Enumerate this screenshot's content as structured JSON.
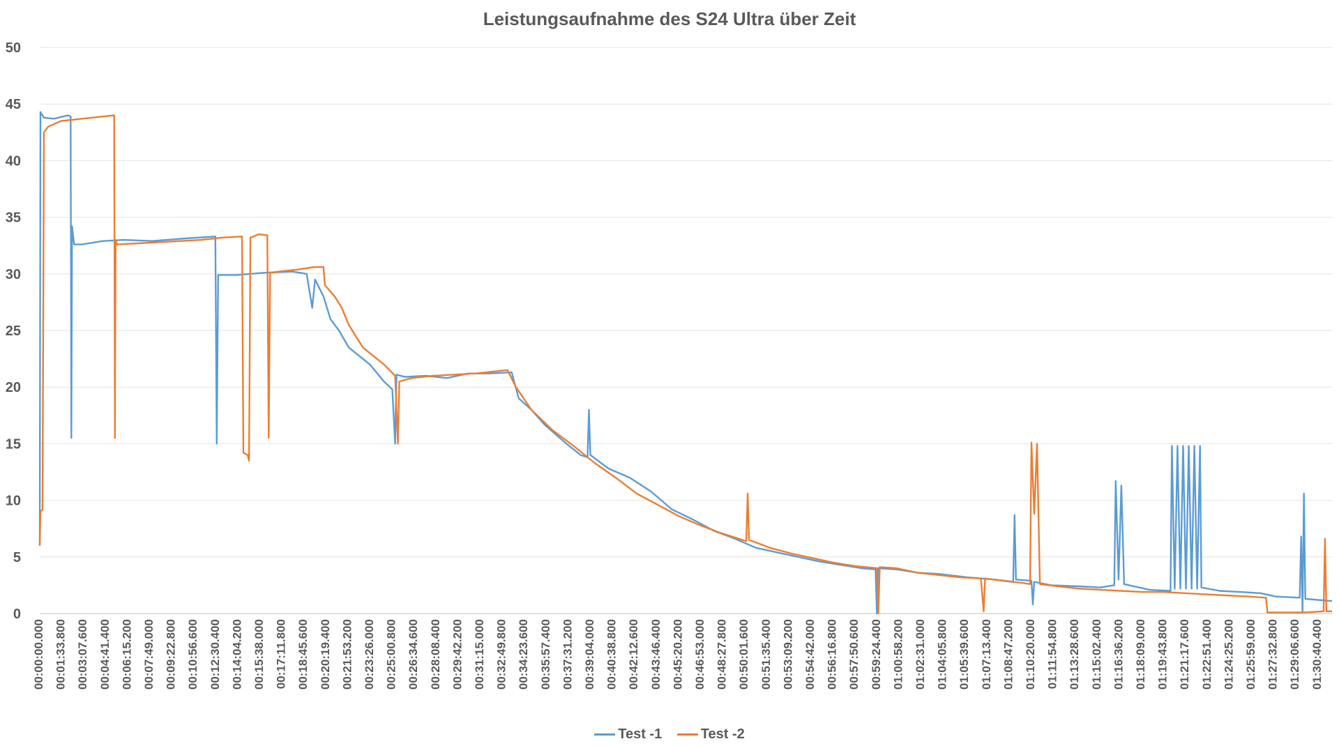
{
  "chart_data": {
    "type": "line",
    "title": "Leistungsaufnahme des S24 Ultra über Zeit",
    "xlabel": "",
    "ylabel": "",
    "ylim": [
      0,
      50
    ],
    "yticks": [
      0,
      5,
      10,
      15,
      20,
      25,
      30,
      35,
      40,
      45,
      50
    ],
    "grid": true,
    "legend_position": "bottom",
    "x_tick_labels": [
      "00:00:00.000",
      "00:01:33.800",
      "00:03:07.600",
      "00:04:41.400",
      "00:06:15.200",
      "00:07:49.000",
      "00:09:22.800",
      "00:10:56.600",
      "00:12:30.400",
      "00:14:04.200",
      "00:15:38.000",
      "00:17:11.800",
      "00:18:45.600",
      "00:20:19.400",
      "00:21:53.200",
      "00:23:26.000",
      "00:25:00.800",
      "00:26:34.600",
      "00:28:08.400",
      "00:29:42.200",
      "00:31:15.000",
      "00:32:49.800",
      "00:34:23.600",
      "00:35:57.400",
      "00:37:31.200",
      "00:39:04.000",
      "00:40:38.800",
      "00:42:12.600",
      "00:43:46.400",
      "00:45:20.200",
      "00:46:53.000",
      "00:48:27.800",
      "00:50:01.600",
      "00:51:35.400",
      "00:53:09.200",
      "00:54:42.000",
      "00:56:16.800",
      "00:57:50.600",
      "00:59:24.400",
      "01:00:58.200",
      "01:02:31.000",
      "01:04:05.800",
      "01:05:39.600",
      "01:07:13.400",
      "01:08:47.200",
      "01:10:20.000",
      "01:11:54.800",
      "01:13:28.600",
      "01:15:02.400",
      "01:16:36.200",
      "01:18:09.000",
      "01:19:43.800",
      "01:21:17.600",
      "01:22:51.400",
      "01:24:25.200",
      "01:25:59.000",
      "01:27:32.800",
      "01:29:06.600",
      "01:30:40.400"
    ],
    "x_minutes_max": 92,
    "series": [
      {
        "name": "Test -1",
        "color": "#5b9bd5",
        "points": [
          [
            0,
            6
          ],
          [
            0.05,
            44.3
          ],
          [
            0.3,
            43.8
          ],
          [
            1,
            43.7
          ],
          [
            2,
            44
          ],
          [
            2.2,
            43.9
          ],
          [
            2.25,
            15.5
          ],
          [
            2.3,
            34.2
          ],
          [
            2.45,
            32.6
          ],
          [
            3,
            32.6
          ],
          [
            4.5,
            32.9
          ],
          [
            6,
            33.0
          ],
          [
            8,
            32.9
          ],
          [
            10,
            33.1
          ],
          [
            12.5,
            33.3
          ],
          [
            12.6,
            15
          ],
          [
            12.7,
            29.9
          ],
          [
            14,
            29.9
          ],
          [
            15,
            30.0
          ],
          [
            16,
            30.1
          ],
          [
            18,
            30.2
          ],
          [
            19,
            30.0
          ],
          [
            19.4,
            27
          ],
          [
            19.6,
            29.5
          ],
          [
            20.2,
            28
          ],
          [
            20.7,
            26
          ],
          [
            21.3,
            25
          ],
          [
            22,
            23.5
          ],
          [
            23.5,
            22
          ],
          [
            24.5,
            20.5
          ],
          [
            25.1,
            19.8
          ],
          [
            25.3,
            15
          ],
          [
            25.4,
            21.1
          ],
          [
            26,
            20.9
          ],
          [
            27.5,
            21
          ],
          [
            29,
            20.8
          ],
          [
            30.5,
            21.2
          ],
          [
            32,
            21.2
          ],
          [
            33.6,
            21.3
          ],
          [
            34.1,
            19
          ],
          [
            35,
            18
          ],
          [
            36,
            16.6
          ],
          [
            37.5,
            15
          ],
          [
            38.5,
            14
          ],
          [
            39,
            13.8
          ],
          [
            39.1,
            18
          ],
          [
            39.2,
            14
          ],
          [
            40.5,
            12.8
          ],
          [
            42,
            12
          ],
          [
            43.5,
            10.8
          ],
          [
            45,
            9.2
          ],
          [
            46.5,
            8.3
          ],
          [
            48,
            7.3
          ],
          [
            49.5,
            6.6
          ],
          [
            51,
            5.8
          ],
          [
            52.5,
            5.4
          ],
          [
            54,
            5.0
          ],
          [
            55.5,
            4.6
          ],
          [
            57,
            4.3
          ],
          [
            58.5,
            4.0
          ],
          [
            59.5,
            3.9
          ],
          [
            59.6,
            0
          ],
          [
            59.7,
            4.0
          ],
          [
            61,
            3.9
          ],
          [
            62.5,
            3.6
          ],
          [
            64,
            3.5
          ],
          [
            66,
            3.2
          ],
          [
            68,
            3.0
          ],
          [
            69.3,
            2.8
          ],
          [
            69.4,
            8.7
          ],
          [
            69.5,
            3.0
          ],
          [
            70.6,
            2.9
          ],
          [
            70.7,
            0.8
          ],
          [
            70.8,
            2.8
          ],
          [
            72,
            2.5
          ],
          [
            74,
            2.4
          ],
          [
            75.5,
            2.3
          ],
          [
            76.5,
            2.5
          ],
          [
            76.6,
            11.7
          ],
          [
            76.8,
            3
          ],
          [
            77,
            11.3
          ],
          [
            77.2,
            2.6
          ],
          [
            79,
            2.1
          ],
          [
            80.5,
            2.0
          ],
          [
            80.6,
            14.8
          ],
          [
            80.8,
            2.2
          ],
          [
            81,
            14.8
          ],
          [
            81.2,
            2.2
          ],
          [
            81.4,
            14.8
          ],
          [
            81.6,
            2.2
          ],
          [
            81.8,
            14.8
          ],
          [
            82,
            2.2
          ],
          [
            82.2,
            14.8
          ],
          [
            82.4,
            2.2
          ],
          [
            82.6,
            14.8
          ],
          [
            82.7,
            2.3
          ],
          [
            84,
            2.0
          ],
          [
            85.5,
            1.9
          ],
          [
            86.9,
            1.8
          ],
          [
            88,
            1.5
          ],
          [
            89.7,
            1.4
          ],
          [
            89.8,
            6.8
          ],
          [
            89.9,
            0.1
          ],
          [
            90,
            10.6
          ],
          [
            90.1,
            1.3
          ],
          [
            91,
            1.2
          ],
          [
            92,
            1.1
          ]
        ]
      },
      {
        "name": "Test -2",
        "color": "#ed7d31",
        "points": [
          [
            0,
            6
          ],
          [
            0.05,
            9
          ],
          [
            0.2,
            9.2
          ],
          [
            0.3,
            42.5
          ],
          [
            0.6,
            43
          ],
          [
            1.5,
            43.5
          ],
          [
            3,
            43.7
          ],
          [
            4.5,
            43.9
          ],
          [
            5.3,
            44.0
          ],
          [
            5.35,
            15.5
          ],
          [
            5.4,
            33
          ],
          [
            5.5,
            32.6
          ],
          [
            7,
            32.7
          ],
          [
            8.5,
            32.8
          ],
          [
            10,
            32.9
          ],
          [
            11.5,
            33.0
          ],
          [
            13,
            33.2
          ],
          [
            14.4,
            33.3
          ],
          [
            14.5,
            14.2
          ],
          [
            14.8,
            14
          ],
          [
            14.9,
            13.5
          ],
          [
            15,
            33.2
          ],
          [
            15.6,
            33.5
          ],
          [
            16.2,
            33.4
          ],
          [
            16.3,
            15.5
          ],
          [
            16.4,
            30.1
          ],
          [
            17,
            30.2
          ],
          [
            18.5,
            30.4
          ],
          [
            19.5,
            30.6
          ],
          [
            20.2,
            30.6
          ],
          [
            20.3,
            29
          ],
          [
            21,
            28
          ],
          [
            21.5,
            27
          ],
          [
            22,
            25.5
          ],
          [
            23,
            23.5
          ],
          [
            24.5,
            22
          ],
          [
            25.3,
            21
          ],
          [
            25.5,
            15
          ],
          [
            25.6,
            20.5
          ],
          [
            26.5,
            20.8
          ],
          [
            28,
            21.0
          ],
          [
            29.5,
            21.1
          ],
          [
            31,
            21.2
          ],
          [
            33.3,
            21.5
          ],
          [
            33.9,
            20
          ],
          [
            35,
            18
          ],
          [
            36.5,
            16.2
          ],
          [
            38,
            14.8
          ],
          [
            39.5,
            13.3
          ],
          [
            41,
            12
          ],
          [
            42.5,
            10.6
          ],
          [
            44,
            9.6
          ],
          [
            45.5,
            8.6
          ],
          [
            47,
            7.8
          ],
          [
            48.5,
            7.1
          ],
          [
            50.3,
            6.4
          ],
          [
            50.4,
            10.6
          ],
          [
            50.5,
            6.5
          ],
          [
            52,
            5.8
          ],
          [
            53.5,
            5.3
          ],
          [
            55,
            4.9
          ],
          [
            56.5,
            4.5
          ],
          [
            58,
            4.2
          ],
          [
            59.6,
            4.0
          ],
          [
            59.7,
            0
          ],
          [
            59.8,
            4.1
          ],
          [
            61,
            4.0
          ],
          [
            62.5,
            3.6
          ],
          [
            64,
            3.4
          ],
          [
            65.5,
            3.2
          ],
          [
            67,
            3.1
          ],
          [
            67.2,
            0.2
          ],
          [
            67.3,
            3.1
          ],
          [
            68.5,
            2.9
          ],
          [
            70,
            2.7
          ],
          [
            70.5,
            2.6
          ],
          [
            70.6,
            15.1
          ],
          [
            70.8,
            8.8
          ],
          [
            71,
            15
          ],
          [
            71.2,
            2.6
          ],
          [
            72.5,
            2.4
          ],
          [
            74,
            2.2
          ],
          [
            75.5,
            2.1
          ],
          [
            77,
            2.0
          ],
          [
            78.5,
            1.9
          ],
          [
            80,
            1.9
          ],
          [
            81.5,
            1.8
          ],
          [
            83,
            1.7
          ],
          [
            84.5,
            1.6
          ],
          [
            86,
            1.5
          ],
          [
            87.3,
            1.4
          ],
          [
            87.4,
            0.1
          ],
          [
            88.5,
            0.1
          ],
          [
            90,
            0.1
          ],
          [
            91.4,
            0.2
          ],
          [
            91.5,
            6.6
          ],
          [
            91.6,
            0.2
          ],
          [
            92,
            0.2
          ]
        ]
      }
    ]
  }
}
